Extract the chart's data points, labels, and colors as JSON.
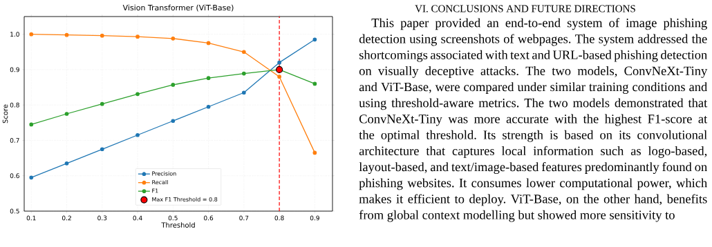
{
  "chart_data": {
    "type": "line",
    "title": "Vision Transformer (ViT-Base)",
    "xlabel": "Threshold",
    "ylabel": "Score",
    "x": [
      0.1,
      0.2,
      0.3,
      0.4,
      0.5,
      0.6,
      0.7,
      0.8,
      0.9
    ],
    "series": [
      {
        "name": "Precision",
        "color": "#1f77b4",
        "values": [
          0.595,
          0.635,
          0.675,
          0.715,
          0.755,
          0.795,
          0.835,
          0.92,
          0.985
        ]
      },
      {
        "name": "Recall",
        "color": "#ff7f0e",
        "values": [
          1.0,
          0.998,
          0.996,
          0.993,
          0.988,
          0.975,
          0.95,
          0.88,
          0.665
        ]
      },
      {
        "name": "F1",
        "color": "#2ca02c",
        "values": [
          0.745,
          0.775,
          0.803,
          0.831,
          0.857,
          0.876,
          0.889,
          0.9,
          0.86
        ]
      },
      {
        "name": "Max F1 Threshold = 0.8",
        "type": "scatter",
        "color": "#ff0000",
        "x": [
          0.8
        ],
        "values": [
          0.9
        ]
      }
    ],
    "xlim": [
      0.08,
      0.95
    ],
    "ylim": [
      0.5,
      1.05
    ],
    "xticks": [
      0.1,
      0.2,
      0.3,
      0.4,
      0.5,
      0.6,
      0.7,
      0.8,
      0.9
    ],
    "yticks": [
      0.5,
      0.6,
      0.7,
      0.8,
      0.9,
      {
        "value": 1.0,
        "label": "1.0"
      }
    ],
    "ref_lines": [
      {
        "axis": "x",
        "value": 0.8,
        "color": "#ff0000",
        "line_style": "dashed"
      }
    ],
    "grid": true,
    "legend": "bottom",
    "marker": "circle",
    "annotations": [
      "VI. CONCLUSIONS AND FUTURE DIRECTIONS",
      "This paper provided an end-to-end system of image phishing detection using screenshots of webpages. The system addressed the shortcomings associated with text and URL-based phishing detection on visually deceptive attacks. The two models, ConvNeXt-Tiny and ViT-Base, were compared under similar training conditions and using threshold-aware metrics. The two models demonstrated that ConvNeXt-Tiny was more accurate with the highest F1-score at the optimal threshold. Its strength is based on its convolutional architecture that captures local information such as logo-based, layout-based, and text/image-based features predominantly found on phishing websites. It consumes lower computational power, which makes it efficient to deploy. ViT-Base, on the other hand, benefits from global context modelling but showed more sensitivity to"
    ]
  }
}
